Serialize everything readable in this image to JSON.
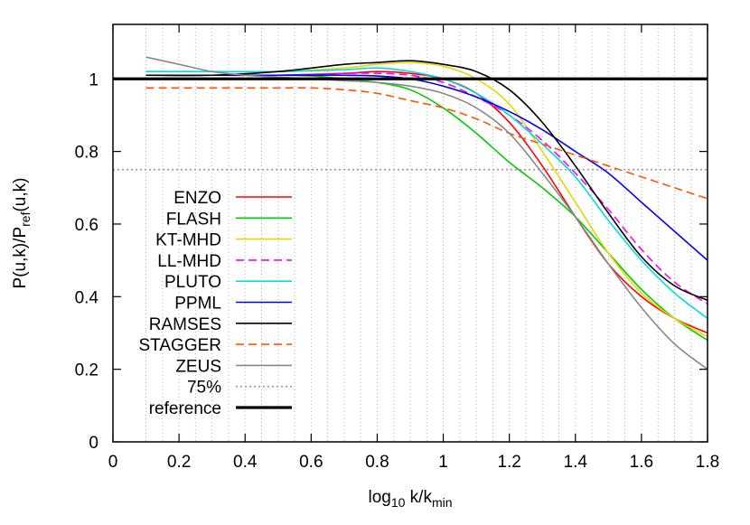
{
  "chart_data": {
    "type": "line",
    "xlabel": "log10 k/kmin",
    "xlabel_parts": {
      "base": "log",
      "base_sub": "10",
      "var": " k/k",
      "var_sub": "min"
    },
    "ylabel": "P(u,k)/Pref(u,k)",
    "ylabel_parts": {
      "pre": "P(u,k)/P",
      "sub": "ref",
      "post": "(u,k)"
    },
    "xlim": [
      0,
      1.8
    ],
    "ylim": [
      0,
      1.15
    ],
    "xticks": [
      "0",
      "0.2",
      "0.4",
      "0.6",
      "0.8",
      "1",
      "1.2",
      "1.4",
      "1.6",
      "1.8"
    ],
    "yticks": [
      "0",
      "0.2",
      "0.4",
      "0.6",
      "0.8",
      "1"
    ],
    "minor_vertical_grid_step": 0.05,
    "grid": "vertical dotted lines",
    "legend_position": "left",
    "series": [
      {
        "name": "ENZO",
        "color": "#ff0000",
        "dash": "solid",
        "x": [
          0.1,
          0.3,
          0.5,
          0.7,
          0.8,
          0.9,
          1.0,
          1.1,
          1.2,
          1.3,
          1.4,
          1.5,
          1.6,
          1.7,
          1.8
        ],
        "y": [
          1.01,
          1.01,
          1.01,
          1.015,
          1.02,
          1.015,
          1.0,
          0.96,
          0.88,
          0.76,
          0.62,
          0.49,
          0.4,
          0.34,
          0.3
        ]
      },
      {
        "name": "FLASH",
        "color": "#00cc00",
        "dash": "solid",
        "x": [
          0.1,
          0.3,
          0.5,
          0.6,
          0.7,
          0.8,
          0.9,
          1.0,
          1.1,
          1.2,
          1.3,
          1.4,
          1.5,
          1.6,
          1.7,
          1.8
        ],
        "y": [
          1.01,
          1.01,
          1.01,
          1.008,
          1.0,
          0.99,
          0.97,
          0.92,
          0.85,
          0.77,
          0.7,
          0.62,
          0.52,
          0.42,
          0.34,
          0.28
        ]
      },
      {
        "name": "KT-MHD",
        "color": "#e6d800",
        "dash": "solid",
        "x": [
          0.1,
          0.3,
          0.5,
          0.7,
          0.8,
          0.9,
          1.0,
          1.1,
          1.2,
          1.3,
          1.4,
          1.5,
          1.6,
          1.7,
          1.8
        ],
        "y": [
          1.02,
          1.02,
          1.02,
          1.03,
          1.04,
          1.045,
          1.035,
          1.0,
          0.93,
          0.8,
          0.66,
          0.52,
          0.41,
          0.34,
          0.29
        ]
      },
      {
        "name": "LL-MHD",
        "color": "#ff00ff",
        "dash": "dashed",
        "x": [
          0.1,
          0.3,
          0.5,
          0.7,
          0.8,
          0.9,
          1.0,
          1.1,
          1.2,
          1.3,
          1.4,
          1.5,
          1.6,
          1.7,
          1.8
        ],
        "y": [
          1.01,
          1.01,
          1.01,
          1.015,
          1.015,
          1.01,
          0.99,
          0.95,
          0.9,
          0.83,
          0.74,
          0.64,
          0.53,
          0.44,
          0.38
        ]
      },
      {
        "name": "PLUTO",
        "color": "#00dddd",
        "dash": "solid",
        "x": [
          0.1,
          0.3,
          0.5,
          0.7,
          0.8,
          0.9,
          1.0,
          1.1,
          1.2,
          1.3,
          1.4,
          1.5,
          1.6,
          1.7,
          1.8
        ],
        "y": [
          1.02,
          1.02,
          1.02,
          1.025,
          1.03,
          1.02,
          1.0,
          0.96,
          0.9,
          0.82,
          0.73,
          0.61,
          0.5,
          0.41,
          0.34
        ]
      },
      {
        "name": "PPML",
        "color": "#0000ff",
        "dash": "solid",
        "x": [
          0.1,
          0.3,
          0.5,
          0.7,
          0.8,
          0.9,
          1.0,
          1.1,
          1.2,
          1.3,
          1.4,
          1.5,
          1.6,
          1.7,
          1.8
        ],
        "y": [
          1.01,
          1.01,
          1.01,
          1.01,
          1.008,
          1.0,
          0.98,
          0.95,
          0.91,
          0.86,
          0.8,
          0.74,
          0.66,
          0.58,
          0.5
        ]
      },
      {
        "name": "RAMSES",
        "color": "#000000",
        "dash": "solid",
        "x": [
          0.1,
          0.3,
          0.5,
          0.7,
          0.8,
          0.9,
          1.0,
          1.1,
          1.2,
          1.3,
          1.4,
          1.5,
          1.6,
          1.7,
          1.8
        ],
        "y": [
          1.01,
          1.01,
          1.02,
          1.04,
          1.045,
          1.05,
          1.04,
          1.02,
          0.97,
          0.88,
          0.76,
          0.63,
          0.51,
          0.43,
          0.39
        ]
      },
      {
        "name": "STAGGER",
        "color": "#ff5500",
        "dash": "dashed",
        "x": [
          0.1,
          0.3,
          0.5,
          0.6,
          0.7,
          0.8,
          0.9,
          1.0,
          1.1,
          1.2,
          1.3,
          1.4,
          1.5,
          1.6,
          1.7,
          1.8
        ],
        "y": [
          0.975,
          0.975,
          0.975,
          0.975,
          0.97,
          0.96,
          0.94,
          0.92,
          0.89,
          0.85,
          0.82,
          0.79,
          0.76,
          0.73,
          0.7,
          0.67
        ]
      },
      {
        "name": "ZEUS",
        "color": "#888888",
        "dash": "solid",
        "x": [
          0.1,
          0.2,
          0.3,
          0.4,
          0.5,
          0.6,
          0.7,
          0.8,
          0.9,
          1.0,
          1.1,
          1.2,
          1.3,
          1.4,
          1.5,
          1.6,
          1.7,
          1.8
        ],
        "y": [
          1.06,
          1.04,
          1.02,
          1.01,
          1.005,
          1.0,
          0.995,
          0.99,
          0.98,
          0.96,
          0.92,
          0.85,
          0.74,
          0.62,
          0.49,
          0.37,
          0.27,
          0.2
        ]
      },
      {
        "name": "75%",
        "color": "#999999",
        "dash": "dotted",
        "x": [
          0.0,
          1.8
        ],
        "y": [
          0.75,
          0.75
        ]
      },
      {
        "name": "reference",
        "color": "#000000",
        "dash": "solid",
        "bold": true,
        "x": [
          0.0,
          1.8
        ],
        "y": [
          1.0,
          1.0
        ]
      }
    ]
  }
}
